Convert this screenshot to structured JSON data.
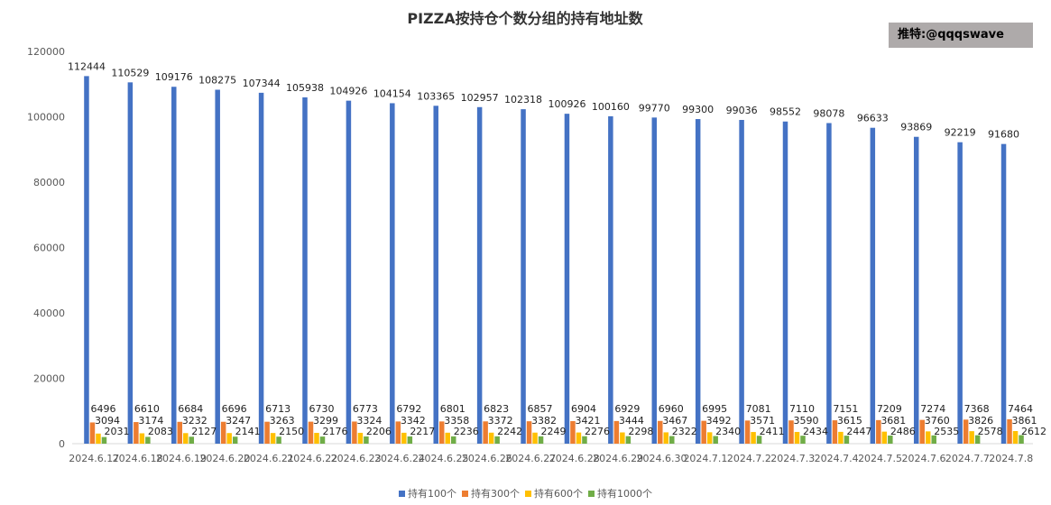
{
  "watermark": "推特:@qqqswave",
  "chart_data": {
    "type": "bar",
    "title": "PIZZA按持仓个数分组的持有地址数",
    "xlabel": "",
    "ylabel": "",
    "ylim": [
      0,
      120000
    ],
    "yticks": [
      0,
      20000,
      40000,
      60000,
      80000,
      100000,
      120000
    ],
    "grid": false,
    "legend_position": "bottom",
    "categories": [
      "2024.6.17",
      "2024.6.18",
      "2024.6.19",
      "2024.6.20",
      "2024.6.21",
      "2024.6.22",
      "2024.6.23",
      "2024.6.24",
      "2024.6.25",
      "2024.6.26",
      "2024.6.27",
      "2024.6.28",
      "2024.6.29",
      "2024.6.30",
      "2024.7.1",
      "2024.7.2",
      "2024.7.3",
      "2024.7.4",
      "2024.7.5",
      "2024.7.6",
      "2024.7.7",
      "2024.7.8"
    ],
    "series": [
      {
        "name": "持有100个",
        "color": "#4472c4",
        "values": [
          112444,
          110529,
          109176,
          108275,
          107344,
          105938,
          104926,
          104154,
          103365,
          102957,
          102318,
          100926,
          100160,
          99770,
          99300,
          99036,
          98552,
          98078,
          96633,
          93869,
          92219,
          91680
        ]
      },
      {
        "name": "持有300个",
        "color": "#ed7d31",
        "values": [
          6496,
          6610,
          6684,
          6696,
          6713,
          6730,
          6773,
          6792,
          6801,
          6823,
          6857,
          6904,
          6929,
          6960,
          6995,
          7081,
          7110,
          7151,
          7209,
          7274,
          7368,
          7464
        ]
      },
      {
        "name": "持有600个",
        "color": "#ffc000",
        "values": [
          3094,
          3174,
          3232,
          3247,
          3263,
          3299,
          3324,
          3342,
          3358,
          3372,
          3382,
          3421,
          3444,
          3467,
          3492,
          3571,
          3590,
          3615,
          3681,
          3760,
          3826,
          3861
        ]
      },
      {
        "name": "持有1000个",
        "color": "#70ad47",
        "values": [
          2031,
          2083,
          2127,
          2141,
          2150,
          2176,
          2206,
          2217,
          2236,
          2242,
          2249,
          2276,
          2298,
          2322,
          2340,
          2411,
          2434,
          2447,
          2486,
          2535,
          2578,
          2612
        ]
      }
    ]
  }
}
